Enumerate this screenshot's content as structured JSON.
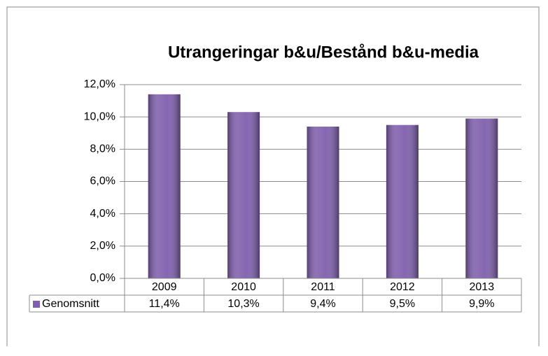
{
  "chart_data": {
    "type": "bar",
    "title": "Utrangeringar b&u/Bestånd b&u-media",
    "categories": [
      "2009",
      "2010",
      "2011",
      "2012",
      "2013"
    ],
    "series": [
      {
        "name": "Genomsnitt",
        "color": "#7f5fad",
        "values": [
          11.4,
          10.3,
          9.4,
          9.5,
          9.9
        ],
        "value_labels": [
          "11,4%",
          "10,3%",
          "9,4%",
          "9,5%",
          "9,9%"
        ]
      }
    ],
    "ylim": [
      0,
      12
    ],
    "yticks": [
      {
        "value": 0,
        "label": "0,0%"
      },
      {
        "value": 2,
        "label": "2,0%"
      },
      {
        "value": 4,
        "label": "4,0%"
      },
      {
        "value": 6,
        "label": "6,0%"
      },
      {
        "value": 8,
        "label": "8,0%"
      },
      {
        "value": 10,
        "label": "10,0%"
      },
      {
        "value": 12,
        "label": "12,0%"
      }
    ],
    "grid": true,
    "data_table": true
  }
}
